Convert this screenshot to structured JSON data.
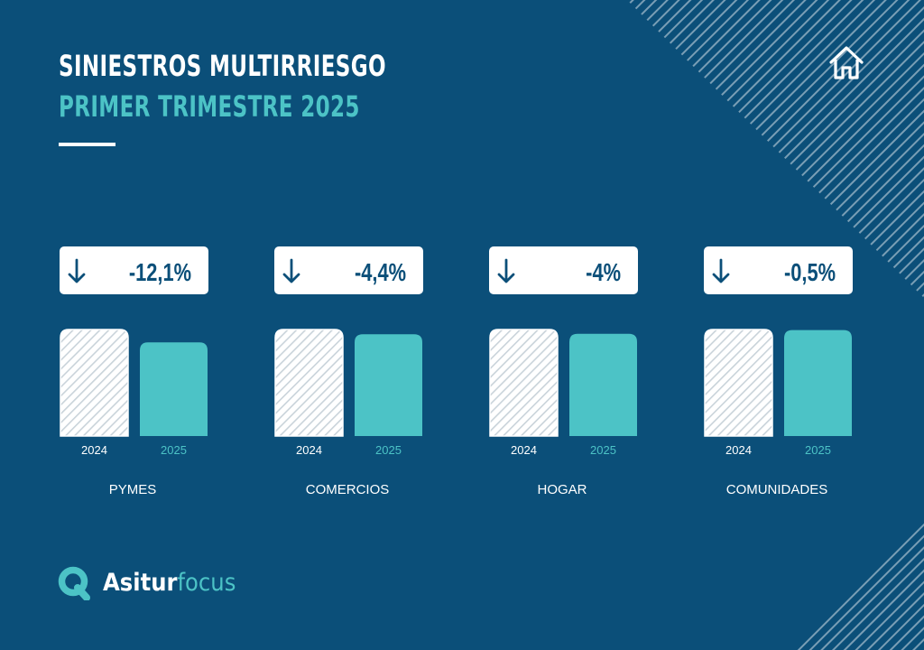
{
  "header": {
    "title": "SINIESTROS MULTIRRIESGO",
    "subtitle": "PRIMER TRIMESTRE 2025"
  },
  "brand": {
    "name_part1": "Asitur",
    "name_part2": "focus"
  },
  "colors": {
    "background": "#0b4f79",
    "accent": "#4cc3c6",
    "white": "#ffffff",
    "hatch": "#c9d3da"
  },
  "icons": [
    "home-icon",
    "arrow-down-icon",
    "asitur-logo-icon"
  ],
  "chart_data": {
    "type": "bar",
    "title": "SINIESTROS MULTIRRIESGO",
    "subtitle": "PRIMER TRIMESTRE 2025",
    "series_labels": [
      "2024",
      "2025"
    ],
    "groups": [
      {
        "name": "PYMES",
        "change": "-12,1%",
        "values": [
          100,
          87.9
        ]
      },
      {
        "name": "COMERCIOS",
        "change": "-4,4%",
        "values": [
          100,
          95.6
        ]
      },
      {
        "name": "HOGAR",
        "change": "-4%",
        "values": [
          100,
          96.0
        ]
      },
      {
        "name": "COMUNIDADES",
        "change": "-0,5%",
        "values": [
          100,
          99.5
        ]
      }
    ],
    "ylim": [
      0,
      100
    ],
    "grid": false,
    "legend": "none"
  }
}
